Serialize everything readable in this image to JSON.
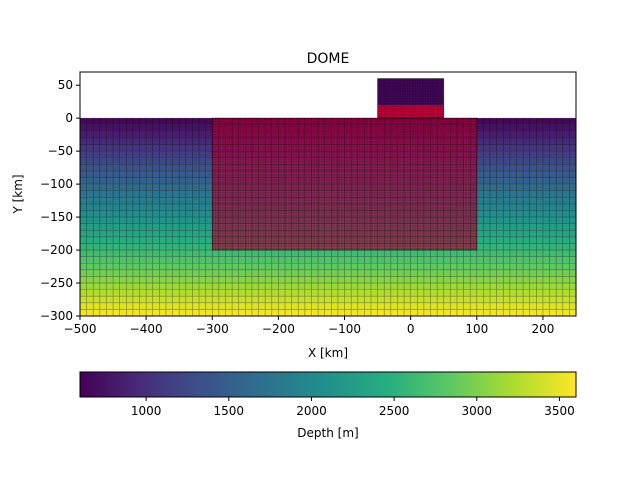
{
  "chart_data": {
    "type": "heatmap",
    "title": "DOME",
    "xlabel": "X [km]",
    "ylabel": "Y [km]",
    "xlim": [
      -500,
      250
    ],
    "ylim": [
      -300,
      70
    ],
    "x_ticks": [
      -500,
      -400,
      -300,
      -200,
      -100,
      0,
      100,
      200
    ],
    "y_ticks": [
      -300,
      -250,
      -200,
      -150,
      -100,
      -50,
      0,
      50
    ],
    "x_tick_labels": [
      "−500",
      "−400",
      "−300",
      "−200",
      "−100",
      "0",
      "100",
      "200"
    ],
    "y_tick_labels": [
      "−300",
      "−250",
      "−200",
      "−150",
      "−100",
      "−50",
      "0",
      "50"
    ],
    "grid_spacing_km": 10,
    "base_mesh": {
      "x_range": [
        -500,
        250
      ],
      "y_range": [
        -300,
        0
      ]
    },
    "fine_mesh_region": {
      "x_range": [
        -300,
        100
      ],
      "y_range": [
        -200,
        0
      ],
      "color": "#c4003a",
      "spacing_km": 2.5
    },
    "dome": {
      "x_range": [
        -50,
        50
      ],
      "y_range": [
        0,
        60
      ],
      "lower_fill": {
        "y_range": [
          0,
          20
        ],
        "color": "#c4003a"
      },
      "upper_fill": {
        "y_range": [
          20,
          60
        ],
        "color": "#44085a"
      }
    },
    "colorbar": {
      "label": "Depth [m]",
      "range": [
        600,
        3600
      ],
      "ticks": [
        1000,
        1500,
        2000,
        2500,
        3000,
        3500
      ],
      "tick_labels": [
        "1000",
        "1500",
        "2000",
        "2500",
        "3000",
        "3500"
      ],
      "colormap": "viridis"
    }
  }
}
